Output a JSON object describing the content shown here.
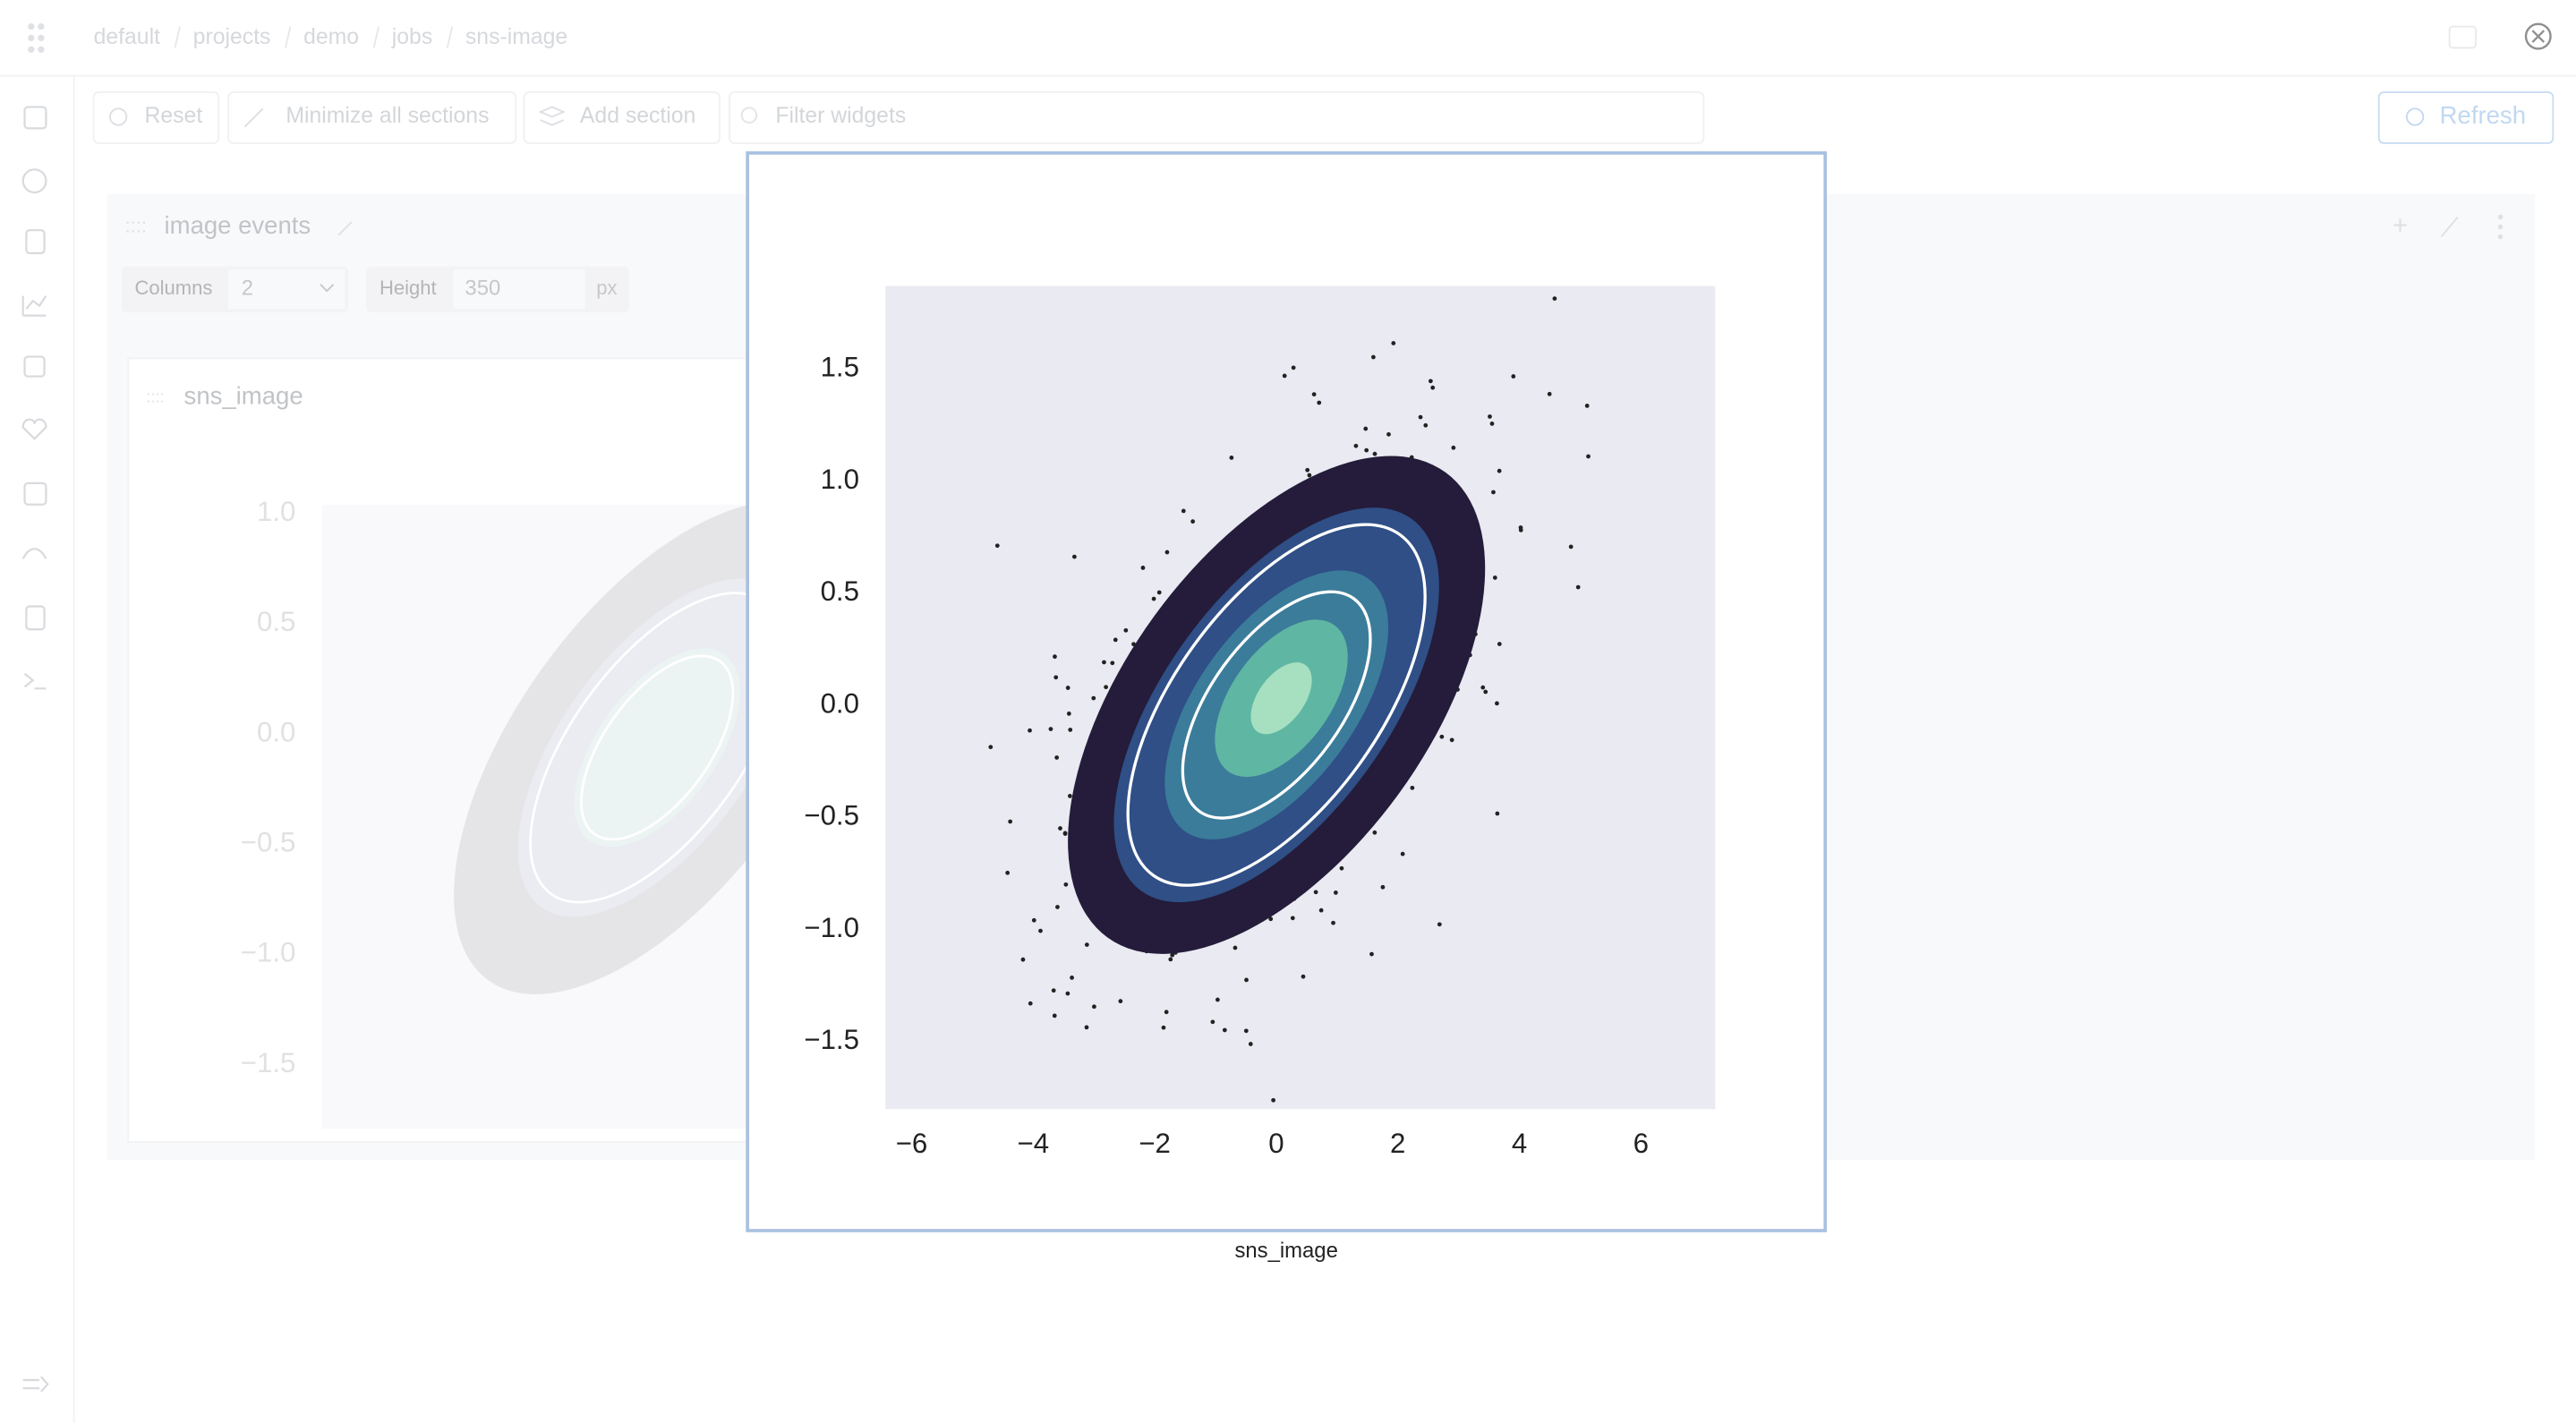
{
  "breadcrumbs": [
    "default",
    "projects",
    "demo",
    "jobs",
    "sns-image"
  ],
  "toolbar": {
    "reset": "Reset",
    "minimize": "Minimize all sections",
    "add_section": "Add section",
    "filter_placeholder": "Filter widgets",
    "refresh": "Refresh"
  },
  "section": {
    "title": "image events",
    "columns_label": "Columns",
    "columns_value": "2",
    "height_label": "Height",
    "height_value": "350",
    "height_unit": "px"
  },
  "widget": {
    "title": "sns_image",
    "chart_data": {
      "type": "image",
      "ylim": [
        -1.79,
        1.04
      ],
      "yticks": [
        {
          "value": 1.0,
          "label": "1.0"
        },
        0.5,
        {
          "value": 0,
          "label": "0.0"
        },
        {
          "value": -0.5,
          "label": "−0.5"
        },
        {
          "value": -1.0,
          "label": "−1.0"
        },
        {
          "value": -1.5,
          "label": "−1.5"
        }
      ]
    }
  },
  "modal": {
    "caption": "sns_image",
    "chart_data": {
      "type": "image",
      "xlim": [
        -6.43,
        7.22
      ],
      "ylim": [
        -1.8,
        1.87
      ],
      "xticks": [
        {
          "value": -6,
          "label": "−6"
        },
        {
          "value": -4,
          "label": "−4"
        },
        {
          "value": -2,
          "label": "−2"
        },
        0,
        2,
        4,
        6
      ],
      "yticks": [
        1.5,
        {
          "value": 1.0,
          "label": "1.0"
        },
        0.5,
        {
          "value": 0,
          "label": "0.0"
        },
        {
          "value": -0.5,
          "label": "−0.5"
        },
        {
          "value": -1.0,
          "label": "−1.0"
        },
        {
          "value": -1.5,
          "label": "−1.5"
        }
      ]
    }
  }
}
